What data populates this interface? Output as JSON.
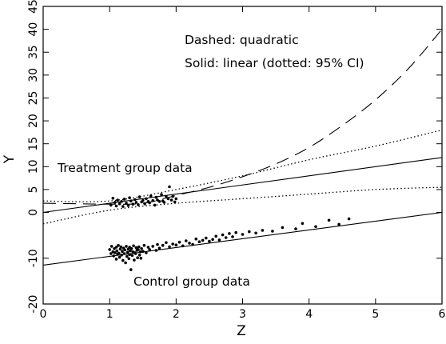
{
  "chart_data": {
    "type": "scatter",
    "title": "",
    "xlabel": "Z",
    "ylabel": "Y",
    "xlim": [
      0,
      6
    ],
    "ylim": [
      -20,
      45
    ],
    "x_ticks": [
      0,
      1,
      2,
      3,
      4,
      5,
      6
    ],
    "y_ticks": [
      -20,
      -10,
      0,
      5,
      10,
      15,
      20,
      25,
      30,
      35,
      40,
      45
    ],
    "x_tick_labels": [
      "0",
      "1",
      "2",
      "3",
      "4",
      "5",
      "6"
    ],
    "y_tick_labels": [
      "-20",
      "-10",
      "0",
      "5",
      "10",
      "15",
      "20",
      "25",
      "30",
      "35",
      "40",
      "45"
    ],
    "grid": false,
    "annotations": [
      {
        "id": "legend_dashed",
        "text": "Dashed: quadratic"
      },
      {
        "id": "legend_solid",
        "text": "Solid: linear (dotted: 95% CI)"
      },
      {
        "id": "treatment_label",
        "text": "Treatment group data"
      },
      {
        "id": "control_label",
        "text": "Control group data"
      }
    ],
    "series": [
      {
        "name": "Treatment group data",
        "kind": "points",
        "x": [
          1.02,
          1.05,
          1.08,
          1.1,
          1.12,
          1.15,
          1.18,
          1.2,
          1.22,
          1.25,
          1.28,
          1.3,
          1.32,
          1.35,
          1.38,
          1.4,
          1.43,
          1.45,
          1.48,
          1.5,
          1.53,
          1.55,
          1.58,
          1.6,
          1.62,
          1.65,
          1.68,
          1.7,
          1.72,
          1.75,
          1.78,
          1.8,
          1.82,
          1.85,
          1.88,
          1.9,
          1.93,
          1.95,
          1.98,
          2.0
        ],
        "y": [
          1.6,
          3.1,
          2.2,
          1.4,
          2.7,
          1.9,
          2.4,
          1.3,
          2.9,
          2.0,
          1.5,
          3.2,
          2.5,
          1.8,
          2.8,
          2.2,
          1.7,
          3.4,
          2.3,
          2.6,
          1.9,
          3.0,
          2.4,
          2.1,
          3.6,
          2.6,
          1.6,
          3.3,
          2.7,
          2.4,
          3.9,
          2.5,
          2.2,
          3.5,
          3.0,
          5.6,
          2.7,
          3.5,
          2.3,
          3.0
        ]
      },
      {
        "name": "Control group data",
        "kind": "points",
        "x": [
          1.0,
          1.02,
          1.03,
          1.05,
          1.06,
          1.07,
          1.08,
          1.1,
          1.1,
          1.11,
          1.12,
          1.13,
          1.14,
          1.15,
          1.16,
          1.17,
          1.18,
          1.19,
          1.2,
          1.21,
          1.22,
          1.23,
          1.24,
          1.25,
          1.26,
          1.27,
          1.28,
          1.29,
          1.3,
          1.3,
          1.31,
          1.32,
          1.33,
          1.34,
          1.35,
          1.36,
          1.37,
          1.38,
          1.39,
          1.4,
          1.41,
          1.42,
          1.43,
          1.44,
          1.45,
          1.46,
          1.47,
          1.48,
          1.5,
          1.52,
          1.55,
          1.58,
          1.6,
          1.65,
          1.7,
          1.72,
          1.75,
          1.8,
          1.85,
          1.9,
          1.95,
          2.0,
          2.05,
          2.1,
          2.15,
          2.2,
          2.25,
          2.3,
          2.35,
          2.4,
          2.45,
          2.5,
          2.55,
          2.6,
          2.65,
          2.7,
          2.75,
          2.8,
          2.85,
          2.9,
          3.0,
          3.1,
          3.2,
          3.3,
          3.45,
          3.6,
          3.8,
          3.9,
          4.1,
          4.3,
          4.45,
          4.6
        ],
        "y": [
          -8.1,
          -9.0,
          -7.4,
          -8.6,
          -9.5,
          -7.9,
          -8.8,
          -10.2,
          -7.6,
          -8.4,
          -9.1,
          -7.2,
          -8.9,
          -9.8,
          -8.0,
          -7.5,
          -9.3,
          -8.5,
          -10.5,
          -7.8,
          -9.0,
          -8.2,
          -11.0,
          -7.4,
          -9.6,
          -8.7,
          -8.0,
          -10.1,
          -7.6,
          -9.2,
          -8.4,
          -12.5,
          -7.9,
          -9.4,
          -8.6,
          -7.3,
          -10.4,
          -8.8,
          -9.0,
          -7.7,
          -8.3,
          -9.9,
          -8.1,
          -7.5,
          -9.3,
          -8.6,
          -10.0,
          -7.9,
          -8.5,
          -7.2,
          -8.8,
          -7.6,
          -8.1,
          -7.4,
          -8.3,
          -7.0,
          -7.8,
          -7.2,
          -6.6,
          -7.5,
          -6.9,
          -7.1,
          -6.5,
          -7.3,
          -6.2,
          -6.7,
          -7.0,
          -5.8,
          -6.4,
          -6.1,
          -5.6,
          -6.3,
          -5.9,
          -5.2,
          -6.0,
          -4.9,
          -5.5,
          -4.6,
          -5.3,
          -4.4,
          -4.8,
          -4.2,
          -4.5,
          -3.9,
          -4.1,
          -3.3,
          -3.6,
          -2.4,
          -3.1,
          -1.7,
          -2.6,
          -1.4
        ]
      },
      {
        "name": "",
        "kind": "linear_fit",
        "linestyle": "solid",
        "x": [
          0,
          6
        ],
        "y": [
          0,
          12
        ]
      },
      {
        "name": "",
        "kind": "ci_upper",
        "linestyle": "dotted",
        "x": [
          0,
          1,
          2,
          3,
          4,
          5,
          6
        ],
        "y": [
          2.5,
          2.5,
          5.0,
          8.0,
          11.5,
          14.5,
          18.0
        ]
      },
      {
        "name": "",
        "kind": "ci_lower",
        "linestyle": "dotted",
        "x": [
          0,
          1,
          2,
          3,
          4,
          5,
          6
        ],
        "y": [
          -2.5,
          0.5,
          2.0,
          3.0,
          4.0,
          5.0,
          5.5
        ]
      },
      {
        "name": "",
        "kind": "quadratic_fit",
        "linestyle": "dashed",
        "x": [
          0,
          0.5,
          1,
          1.5,
          2,
          2.5,
          3,
          3.5,
          4,
          4.5,
          5,
          5.5,
          6
        ],
        "y": [
          2.0,
          1.9,
          1.8,
          2.0,
          3.7,
          5.5,
          7.8,
          10.6,
          14.2,
          19.0,
          24.6,
          31.5,
          40.0
        ]
      },
      {
        "name": "",
        "kind": "control_fit",
        "linestyle": "solid",
        "x": [
          0,
          6
        ],
        "y": [
          -11.5,
          0
        ]
      }
    ]
  }
}
